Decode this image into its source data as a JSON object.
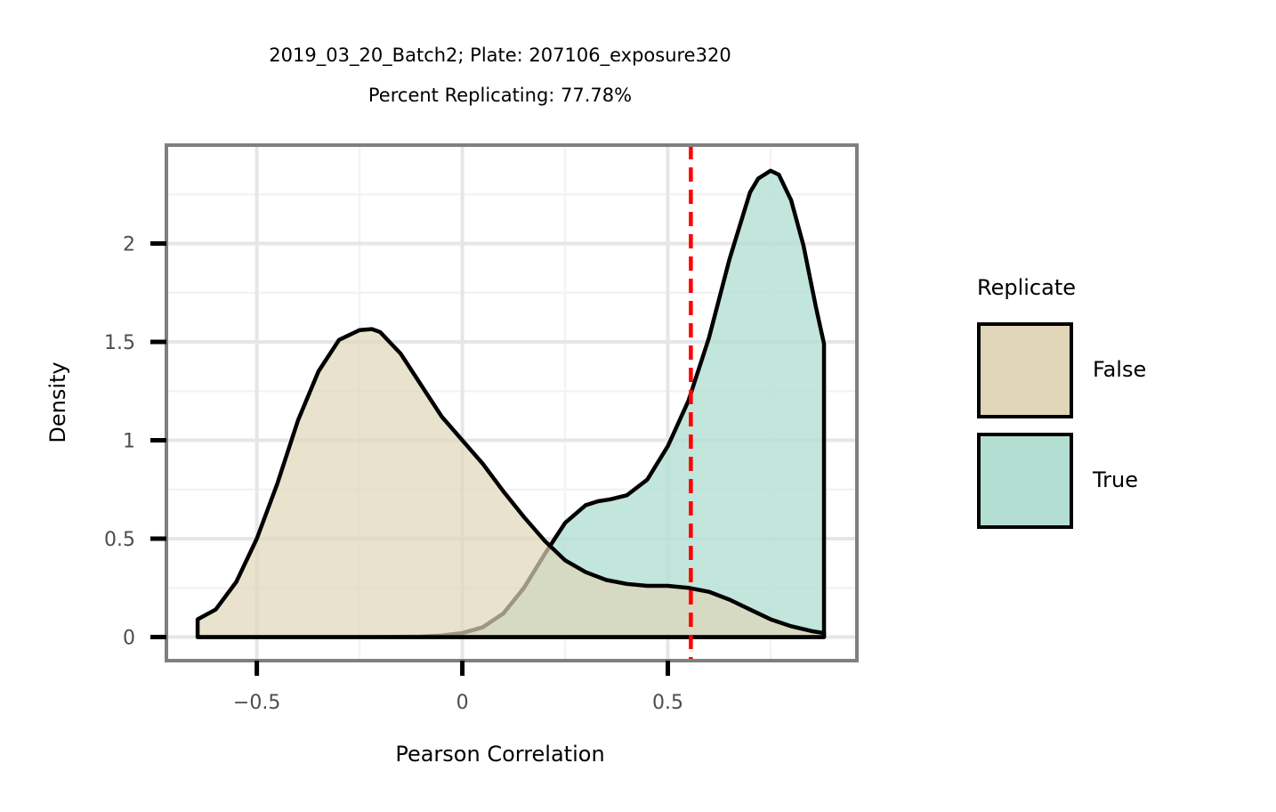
{
  "chart_data": {
    "type": "area",
    "title": "2019_03_20_Batch2; Plate: 207106_exposure320",
    "subtitle": "Percent Replicating: 77.78%",
    "xlabel": "Pearson Correlation",
    "ylabel": "Density",
    "xlim": [
      -0.72,
      0.96
    ],
    "ylim": [
      -0.12,
      2.5
    ],
    "x_ticks": [
      -0.5,
      0,
      0.5
    ],
    "x_tick_labels": [
      "−0.5",
      "0",
      "0.5"
    ],
    "y_ticks": [
      0,
      0.5,
      1,
      1.5,
      2
    ],
    "y_tick_labels": [
      "0",
      "0.5",
      "1",
      "1.5",
      "2"
    ],
    "grid": true,
    "threshold_line": {
      "x": 0.556,
      "color": "#ff0000",
      "style": "dashed"
    },
    "legend": {
      "title": "Replicate",
      "position": "right",
      "entries": [
        {
          "label": "False",
          "color": "#e0d5b8"
        },
        {
          "label": "True",
          "color": "#b3dfd3"
        }
      ]
    },
    "series": [
      {
        "name": "False",
        "fill": "#e0d5b8",
        "opacity": 0.7,
        "x": [
          -0.644,
          -0.6,
          -0.55,
          -0.5,
          -0.45,
          -0.4,
          -0.35,
          -0.3,
          -0.25,
          -0.22,
          -0.2,
          -0.15,
          -0.1,
          -0.05,
          0.0,
          0.05,
          0.1,
          0.15,
          0.2,
          0.25,
          0.3,
          0.35,
          0.4,
          0.45,
          0.5,
          0.55,
          0.6,
          0.65,
          0.7,
          0.75,
          0.8,
          0.85,
          0.88
        ],
        "y": [
          0.09,
          0.14,
          0.28,
          0.5,
          0.78,
          1.1,
          1.35,
          1.51,
          1.56,
          1.565,
          1.55,
          1.44,
          1.28,
          1.12,
          1.0,
          0.88,
          0.74,
          0.61,
          0.49,
          0.39,
          0.33,
          0.29,
          0.27,
          0.26,
          0.26,
          0.25,
          0.23,
          0.19,
          0.14,
          0.09,
          0.055,
          0.03,
          0.02
        ]
      },
      {
        "name": "True",
        "fill": "#b3dfd3",
        "opacity": 0.8,
        "x": [
          -0.644,
          -0.4,
          -0.2,
          -0.1,
          -0.05,
          0.0,
          0.05,
          0.1,
          0.15,
          0.2,
          0.25,
          0.3,
          0.33,
          0.36,
          0.4,
          0.45,
          0.5,
          0.55,
          0.6,
          0.65,
          0.7,
          0.72,
          0.75,
          0.77,
          0.8,
          0.83,
          0.86,
          0.88
        ],
        "y": [
          0,
          0,
          0,
          0.003,
          0.008,
          0.02,
          0.05,
          0.12,
          0.25,
          0.42,
          0.58,
          0.67,
          0.69,
          0.7,
          0.72,
          0.8,
          0.97,
          1.2,
          1.52,
          1.92,
          2.26,
          2.33,
          2.37,
          2.35,
          2.22,
          1.99,
          1.68,
          1.49
        ]
      }
    ]
  }
}
